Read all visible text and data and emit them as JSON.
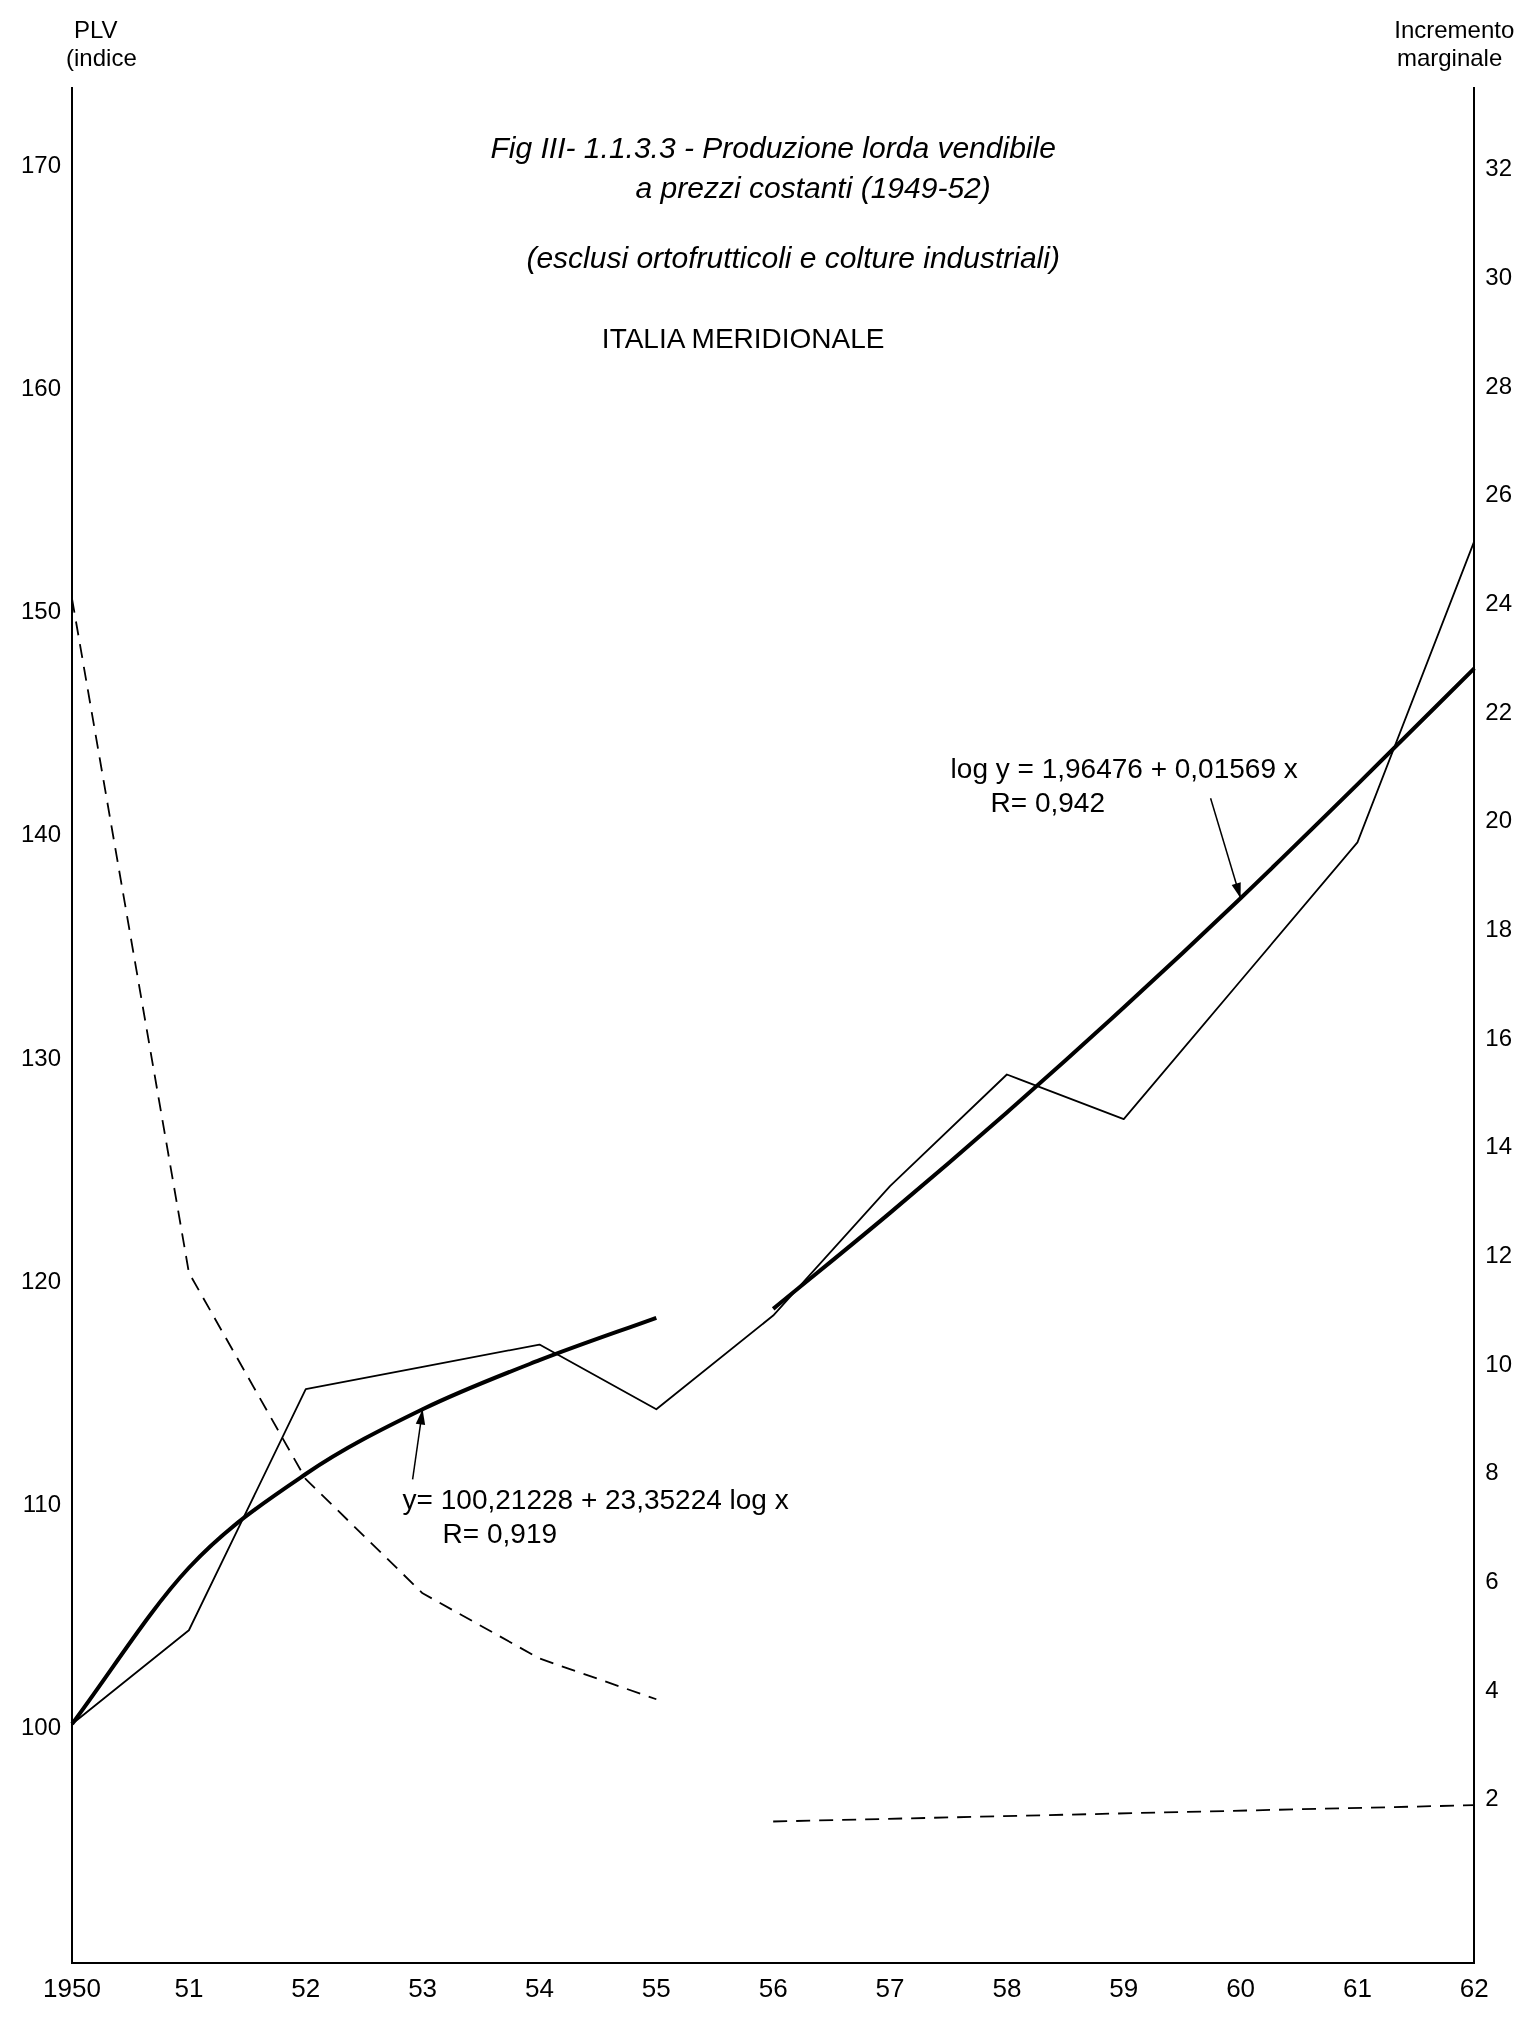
{
  "chart_data": {
    "type": "line",
    "title": "Fig III- 1.1.3.3 - Produzione lorda vendibile a prezzi costanti (1949-52)",
    "subtitle": "(esclusi ortofrutticoli e colture industriali)",
    "ylabel": "PLV (indice",
    "y2label": "Incremento marginale",
    "categories": [
      "1950",
      "51",
      "52",
      "53",
      "54",
      "55",
      "56",
      "57",
      "58",
      "59",
      "60",
      "61",
      "62"
    ],
    "series": [
      {
        "color": "#000000",
        "values": [
          100.2,
          104.4,
          115.2,
          116.2,
          117.2,
          114.3,
          118.5,
          124.3,
          129.3,
          127.3,
          133.5,
          139.7,
          153.2
        ]
      },
      {
        "color": "#000000",
        "values": [
          100.2,
          107.2,
          111.4,
          114.3,
          116.5,
          118.4,
          null,
          null,
          null,
          null,
          null,
          null,
          null
        ]
      },
      {
        "color": "#000000",
        "values": [
          null,
          null,
          null,
          null,
          null,
          null,
          118.8,
          123.1,
          127.6,
          132.3,
          137.2,
          142.3,
          147.5
        ]
      },
      {
        "color": "#000000",
        "axis": "y2",
        "line_style": "dashed",
        "values": [
          24.1,
          11.7,
          7.9,
          5.8,
          4.6,
          3.85,
          null,
          null,
          null,
          null,
          null,
          null,
          null
        ]
      },
      {
        "color": "#000000",
        "axis": "y2",
        "line_style": "dashed",
        "values": [
          null,
          null,
          null,
          null,
          null,
          null,
          1.6,
          null,
          null,
          null,
          null,
          null,
          1.9
        ]
      }
    ],
    "ylim": [
      89.5,
      173.5
    ],
    "yticks": [
      100,
      110,
      120,
      130,
      140,
      150,
      160,
      170
    ],
    "y2lim": [
      -1,
      33.5
    ],
    "y2ticks": [
      2,
      4,
      6,
      8,
      10,
      12,
      14,
      16,
      18,
      20,
      22,
      24,
      26,
      28,
      30,
      32
    ],
    "annotations": [
      "ITALIA MERIDIONALE",
      {
        "text": "log y = 1,96476 + 0,01569 x\nR= 0,942",
        "x": "60",
        "y": 137.2
      },
      {
        "text": "y= 100,21228 + 23,35224 log x\nR= 0,919",
        "x": "53",
        "y": 114.3
      }
    ],
    "grid": false,
    "legend": false,
    "marker": "none"
  }
}
